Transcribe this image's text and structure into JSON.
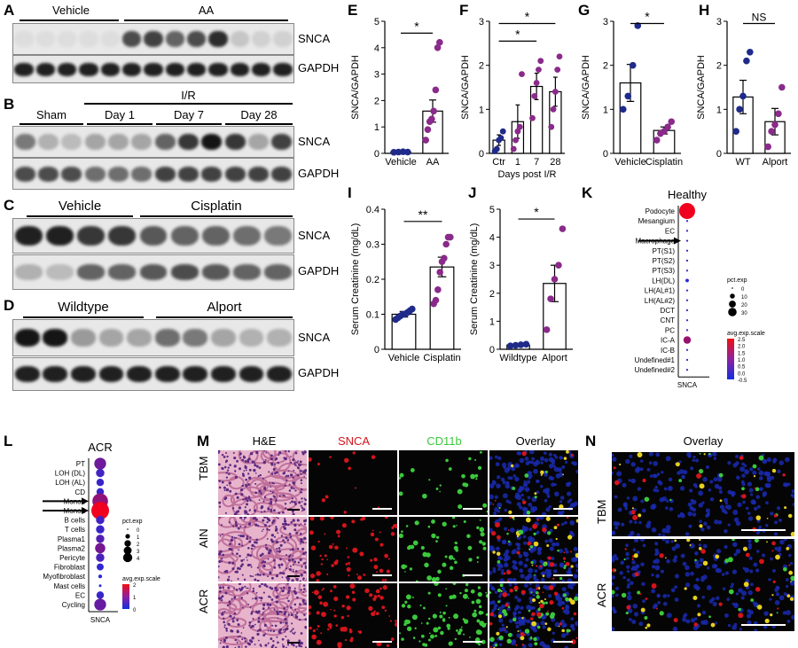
{
  "panels": {
    "A": {
      "letter": "A",
      "groups": [
        "Vehicle",
        "AA"
      ],
      "blots": [
        "SNCA",
        "GAPDH"
      ]
    },
    "B": {
      "letter": "B",
      "top": "I/R",
      "groups": [
        "Sham",
        "Day 1",
        "Day 7",
        "Day 28"
      ],
      "blots": [
        "SNCA",
        "GAPDH"
      ]
    },
    "C": {
      "letter": "C",
      "groups": [
        "Vehicle",
        "Cisplatin"
      ],
      "blots": [
        "SNCA",
        "GAPDH"
      ]
    },
    "D": {
      "letter": "D",
      "groups": [
        "Wildtype",
        "Alport"
      ],
      "blots": [
        "SNCA",
        "GAPDH"
      ]
    },
    "E": {
      "letter": "E",
      "ylabel": "SNCA/GAPDH",
      "sig": "*"
    },
    "F": {
      "letter": "F",
      "ylabel": "SNCA/GAPDH",
      "xlabel": "Days post I/R",
      "sig1": "*",
      "sig2": "*"
    },
    "G": {
      "letter": "G",
      "ylabel": "SNCA/GAPDH",
      "sig": "*"
    },
    "H": {
      "letter": "H",
      "ylabel": "SNCA/GAPDH",
      "sig": "NS"
    },
    "I": {
      "letter": "I",
      "ylabel": "Serum Creatinine (mg/dL)",
      "sig": "**"
    },
    "J": {
      "letter": "J",
      "ylabel": "Serum Creatinine (mg/dL)",
      "sig": "*"
    },
    "K": {
      "letter": "K",
      "title": "Healthy",
      "xlabel": "SNCA",
      "legend1_title": "pct.exp",
      "legend1_values": [
        "0",
        "10",
        "20",
        "30"
      ],
      "legend2_title": "avg.exp.scale",
      "legend2_values": [
        "2.5",
        "2.0",
        "1.5",
        "1.0",
        "0.5",
        "0.0",
        "-0.5"
      ]
    },
    "L": {
      "letter": "L",
      "title": "ACR",
      "xlabel": "SNCA",
      "legend1_title": "pct.exp",
      "legend1_values": [
        "0",
        "1",
        "2",
        "3",
        "4"
      ],
      "legend2_title": "avg.exp.scale",
      "legend2_values": [
        "2",
        "1",
        "0"
      ]
    },
    "M": {
      "letter": "M",
      "columns": [
        "H&E",
        "SNCA",
        "CD11b",
        "Overlay"
      ],
      "rows": [
        "TBM",
        "AIN",
        "ACR"
      ]
    },
    "N": {
      "letter": "N",
      "title": "Overlay",
      "rows": [
        "TBM",
        "ACR"
      ]
    }
  },
  "colors": {
    "navy": "#1f2a8a",
    "purple": "#8a2a8a",
    "snca_red": "#d4141c",
    "cd11b_green": "#3cc83c",
    "nuclei_blue": "#1a1aa0"
  },
  "chart_data": [
    {
      "panel": "E",
      "type": "bar",
      "categories": [
        "Vehicle",
        "AA"
      ],
      "values": [
        0.05,
        1.6
      ],
      "errors": [
        0.02,
        0.42
      ],
      "ylim": [
        0,
        5
      ],
      "yticks": [
        0,
        1,
        2,
        3,
        4,
        5
      ],
      "points": [
        [
          0.04,
          0.05,
          0.06,
          0.05
        ],
        [
          0.5,
          0.9,
          1.2,
          1.3,
          1.6,
          2.4,
          4.0,
          4.2
        ]
      ],
      "point_colors": [
        "navy",
        "purple"
      ],
      "ylabel": "SNCA/GAPDH"
    },
    {
      "panel": "F",
      "type": "bar",
      "categories": [
        "Ctr",
        "1",
        "7",
        "28"
      ],
      "values": [
        0.3,
        0.72,
        1.52,
        1.4
      ],
      "errors": [
        0.12,
        0.38,
        0.3,
        0.33
      ],
      "ylim": [
        0,
        3
      ],
      "yticks": [
        0,
        1,
        2,
        3
      ],
      "points": [
        [
          0.05,
          0.1,
          0.3,
          0.35,
          0.5
        ],
        [
          0.1,
          0.3,
          0.5,
          0.6,
          1.8
        ],
        [
          0.8,
          1.3,
          1.6,
          1.9,
          2.1
        ],
        [
          0.6,
          1.0,
          1.4,
          1.9,
          2.2
        ]
      ],
      "point_colors": [
        "navy",
        "purple",
        "purple",
        "purple"
      ],
      "ylabel": "SNCA/GAPDH",
      "xlabel": "Days post I/R"
    },
    {
      "panel": "G",
      "type": "bar",
      "categories": [
        "Vehicle",
        "Cisplatin"
      ],
      "values": [
        1.6,
        0.52
      ],
      "errors": [
        0.42,
        0.08
      ],
      "ylim": [
        0,
        3
      ],
      "yticks": [
        0,
        1,
        2,
        3
      ],
      "points": [
        [
          1.0,
          1.3,
          2.0,
          2.9
        ],
        [
          0.3,
          0.45,
          0.5,
          0.6,
          0.72
        ]
      ],
      "point_colors": [
        "navy",
        "purple"
      ],
      "ylabel": "SNCA/GAPDH"
    },
    {
      "panel": "H",
      "type": "bar",
      "categories": [
        "WT",
        "Alport"
      ],
      "values": [
        1.28,
        0.72
      ],
      "errors": [
        0.38,
        0.3
      ],
      "ylim": [
        0,
        3
      ],
      "yticks": [
        0,
        1,
        2,
        3
      ],
      "points": [
        [
          0.5,
          1.0,
          1.3,
          2.1,
          2.3
        ],
        [
          0.15,
          0.5,
          0.65,
          0.9,
          1.5
        ]
      ],
      "point_colors": [
        "navy",
        "purple"
      ],
      "ylabel": "SNCA/GAPDH"
    },
    {
      "panel": "I",
      "type": "bar",
      "categories": [
        "Vehicle",
        "Cisplatin"
      ],
      "values": [
        0.1,
        0.235
      ],
      "errors": [
        0.008,
        0.028
      ],
      "ylim": [
        0,
        0.4
      ],
      "yticks": [
        0.0,
        0.1,
        0.2,
        0.3,
        0.4
      ],
      "points": [
        [
          0.085,
          0.09,
          0.095,
          0.1,
          0.1,
          0.105,
          0.11,
          0.115
        ],
        [
          0.13,
          0.14,
          0.17,
          0.22,
          0.25,
          0.26,
          0.3,
          0.32,
          0.32
        ]
      ],
      "point_colors": [
        "navy",
        "purple"
      ],
      "ylabel": "Serum Creatinine (mg/dL)"
    },
    {
      "panel": "J",
      "type": "bar",
      "categories": [
        "Wildtype",
        "Alport"
      ],
      "values": [
        0.15,
        2.35
      ],
      "errors": [
        0.02,
        0.65
      ],
      "ylim": [
        0,
        5
      ],
      "yticks": [
        0,
        1,
        2,
        3,
        4,
        5
      ],
      "points": [
        [
          0.12,
          0.14,
          0.16,
          0.18
        ],
        [
          0.7,
          1.8,
          2.5,
          3.0,
          4.3
        ]
      ],
      "point_colors": [
        "navy",
        "purple"
      ],
      "ylabel": "Serum Creatinine (mg/dL)"
    },
    {
      "panel": "K",
      "type": "scatter",
      "title": "Healthy",
      "xlabel": "SNCA",
      "categories": [
        "Podocyte",
        "Mesangium",
        "EC",
        "Macrophage",
        "PT(S1)",
        "PT(S2)",
        "PT(S3)",
        "LH(DL)",
        "LH(AL#1)",
        "LH(AL#2)",
        "DCT",
        "CNT",
        "PC",
        "IC-A",
        "IC-B",
        "Undefined#1",
        "Undefined#2"
      ],
      "pct_exp": [
        32,
        0.5,
        0.5,
        0.5,
        0.5,
        0.5,
        0.5,
        1.5,
        0.5,
        0.5,
        0.5,
        0.5,
        0.5,
        7,
        0.5,
        0.5,
        0.5
      ],
      "avg_exp_scale": [
        2.5,
        -0.3,
        -0.3,
        -0.3,
        -0.3,
        -0.3,
        -0.3,
        -0.5,
        -0.3,
        -0.3,
        -0.3,
        -0.3,
        -0.3,
        1.2,
        -0.3,
        -0.3,
        -0.3
      ]
    },
    {
      "panel": "L",
      "type": "scatter",
      "title": "ACR",
      "xlabel": "SNCA",
      "categories": [
        "PT",
        "LOH (DL)",
        "LOH (AL)",
        "CD",
        "Mono1",
        "Mono2",
        "B cells",
        "T cells",
        "Plasma1",
        "Plasma2",
        "Pericyte",
        "Fibroblast",
        "Myofibroblast",
        "Mast cells",
        "EC",
        "Cycling"
      ],
      "pct_exp": [
        2,
        1,
        0.8,
        0.8,
        3.5,
        4.5,
        1,
        1,
        1,
        1.5,
        1,
        0.7,
        0.2,
        0.1,
        0.8,
        2
      ],
      "avg_exp_scale": [
        0.8,
        0.3,
        0.2,
        0.2,
        1.2,
        2.3,
        0.3,
        0.2,
        0.5,
        0.9,
        0.4,
        0.1,
        0,
        0,
        0.2,
        0.7
      ]
    }
  ]
}
